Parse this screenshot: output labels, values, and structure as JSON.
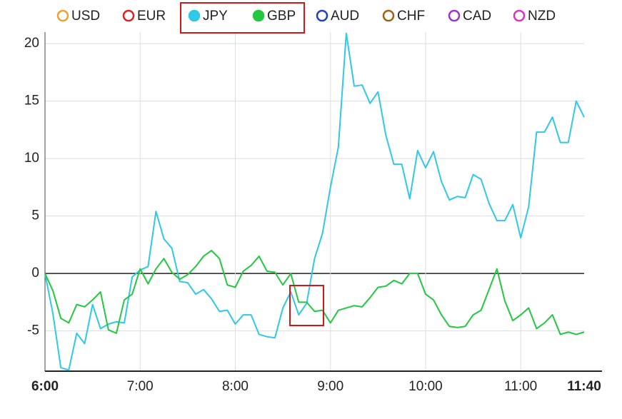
{
  "chart_data": {
    "type": "line",
    "categories": [
      "6:00",
      null,
      null,
      null,
      null,
      null,
      null,
      null,
      null,
      null,
      null,
      null,
      "7:00",
      null,
      null,
      null,
      null,
      null,
      null,
      null,
      null,
      null,
      null,
      null,
      "8:00",
      null,
      null,
      null,
      null,
      null,
      null,
      null,
      null,
      null,
      null,
      null,
      "9:00",
      null,
      null,
      null,
      null,
      null,
      null,
      null,
      null,
      null,
      null,
      null,
      "10:00",
      null,
      null,
      null,
      null,
      null,
      null,
      null,
      null,
      null,
      null,
      null,
      "11:00",
      null,
      null,
      null,
      null,
      null,
      null,
      null,
      "11:40"
    ],
    "series": [
      {
        "name": "USD",
        "color": "#f0a030",
        "visible": false
      },
      {
        "name": "EUR",
        "color": "#e02020",
        "visible": false
      },
      {
        "name": "JPY",
        "color": "#30c8e8",
        "visible": true,
        "values": [
          0,
          -3.5,
          -8.2,
          -8.4,
          -5.2,
          -6.1,
          -2.7,
          -4.8,
          -4.4,
          -4.2,
          -4.3,
          -0.3,
          0.3,
          0.6,
          5.4,
          3.0,
          2.2,
          -0.7,
          -0.8,
          -1.8,
          -1.4,
          -2.2,
          -3.3,
          -3.2,
          -4.4,
          -3.6,
          -3.6,
          -5.3,
          -5.5,
          -5.6,
          -3.0,
          -1.6,
          -3.6,
          -2.6,
          1.3,
          3.5,
          7.5,
          11,
          20.9,
          16.3,
          16.4,
          14.8,
          15.8,
          12.0,
          9.5,
          9.5,
          6.5,
          10.7,
          9.2,
          10.6,
          8.0,
          6.4,
          6.7,
          6.6,
          8.6,
          8.2,
          6.1,
          4.6,
          4.6,
          6.0,
          3.1,
          5.8,
          12.3,
          12.3,
          13.6,
          11.4,
          11.4,
          15.0,
          13.6
        ]
      },
      {
        "name": "GBP",
        "color": "#22c840",
        "visible": true,
        "values": [
          0,
          -1.5,
          -3.9,
          -4.3,
          -2.7,
          -2.9,
          -2.3,
          -1.6,
          -4.9,
          -5.2,
          -2.3,
          -1.8,
          0.4,
          -0.9,
          0.4,
          1.3,
          0.1,
          -0.5,
          -0.1,
          0.6,
          1.5,
          2.0,
          1.3,
          -1.0,
          -1.2,
          0.2,
          0.7,
          1.5,
          0.2,
          0.1,
          -1.0,
          0,
          -2.5,
          -2.5,
          -3.3,
          -3.2,
          -4.3,
          -3.2,
          -3.0,
          -2.8,
          -2.9,
          -2.1,
          -1.2,
          -1.1,
          -0.6,
          -0.9,
          0,
          0,
          -1.8,
          -2.3,
          -3.6,
          -4.6,
          -4.7,
          -4.6,
          -3.6,
          -3.2,
          -1.4,
          0.4,
          -2.4,
          -4.1,
          -3.6,
          -3.0,
          -4.8,
          -4.3,
          -3.6,
          -5.3,
          -5.1,
          -5.3,
          -5.1
        ]
      },
      {
        "name": "AUD",
        "color": "#2040c0",
        "visible": false
      },
      {
        "name": "CHF",
        "color": "#a06010",
        "visible": false
      },
      {
        "name": "CAD",
        "color": "#a030d0",
        "visible": false
      },
      {
        "name": "NZD",
        "color": "#e030c0",
        "visible": false
      }
    ],
    "ylim": [
      -8.5,
      21
    ],
    "yticks": [
      -5,
      0,
      5,
      10,
      15,
      20
    ],
    "grid": true
  }
}
